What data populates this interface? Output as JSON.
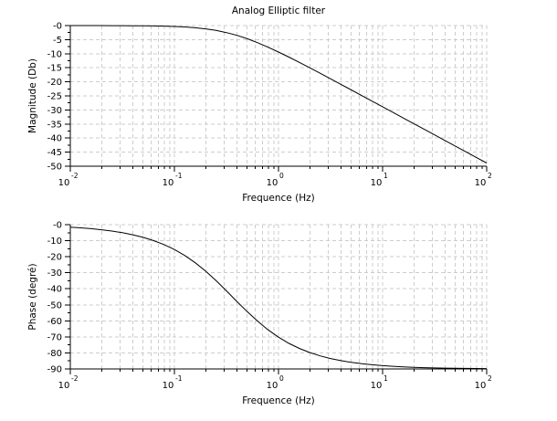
{
  "figure": {
    "title": "Analog Elliptic filter",
    "background": "#ffffff",
    "curve_color": "#000000",
    "axis_color": "#000000",
    "grid_color": "#cdcdcd"
  },
  "chart_data": [
    {
      "type": "line",
      "title": "Analog Elliptic filter",
      "xlabel": "Frequence (Hz)",
      "ylabel": "Magnitude (Db)",
      "x_scale": "log",
      "xlim": [
        0.01,
        100
      ],
      "xlim_exp": [
        -2,
        2
      ],
      "ylim": [
        -50,
        0
      ],
      "y_major_step": 5,
      "y_minor_step": 2.5,
      "grid": true,
      "legend": "none",
      "x_tick_base": "10",
      "x_tick_exponents": [
        "-2",
        "-1",
        "0",
        "1",
        "2"
      ],
      "y_tick_labels": [
        "-0",
        "-5",
        "-10",
        "-15",
        "-20",
        "-25",
        "-30",
        "-35",
        "-40",
        "-45",
        "-50"
      ],
      "series": [
        {
          "name": "magnitude_db",
          "x_exp": [
            -2,
            -1.9,
            -1.8,
            -1.7,
            -1.6,
            -1.5,
            -1.4,
            -1.3,
            -1.2,
            -1.1,
            -1,
            -0.9,
            -0.8,
            -0.7,
            -0.6,
            -0.5,
            -0.4,
            -0.3,
            -0.2,
            -0.1,
            0,
            0.1,
            0.2,
            0.3,
            0.4,
            0.5,
            0.6,
            0.7,
            0.8,
            0.9,
            1,
            1.1,
            1.2,
            1.3,
            1.4,
            1.5,
            1.6,
            1.7,
            1.8,
            1.9,
            2
          ],
          "y": [
            -0.003,
            -0.005,
            -0.008,
            -0.013,
            -0.021,
            -0.033,
            -0.053,
            -0.083,
            -0.131,
            -0.206,
            -0.323,
            -0.501,
            -0.77,
            -1.163,
            -1.724,
            -2.485,
            -3.469,
            -4.68,
            -6.098,
            -7.685,
            -9.403,
            -11.215,
            -13.092,
            -15.013,
            -16.963,
            -18.93,
            -20.909,
            -22.896,
            -24.888,
            -26.883,
            -28.879,
            -30.877,
            -32.876,
            -34.875,
            -36.875,
            -38.874,
            -40.874,
            -42.874,
            -44.874,
            -46.874,
            -48.874
          ]
        }
      ]
    },
    {
      "type": "line",
      "title": "",
      "xlabel": "Frequence (Hz)",
      "ylabel": "Phase (degré)",
      "x_scale": "log",
      "xlim": [
        0.01,
        100
      ],
      "xlim_exp": [
        -2,
        2
      ],
      "ylim": [
        -90,
        0
      ],
      "y_major_step": 10,
      "y_minor_step": 5,
      "grid": true,
      "legend": "none",
      "x_tick_base": "10",
      "x_tick_exponents": [
        "-2",
        "-1",
        "0",
        "1",
        "2"
      ],
      "y_tick_labels": [
        "-0",
        "-10",
        "-20",
        "-30",
        "-40",
        "-50",
        "-60",
        "-70",
        "-80",
        "-90"
      ],
      "series": [
        {
          "name": "phase_deg",
          "x_exp": [
            -2,
            -1.9,
            -1.8,
            -1.7,
            -1.6,
            -1.5,
            -1.4,
            -1.3,
            -1.2,
            -1.1,
            -1,
            -0.9,
            -0.8,
            -0.7,
            -0.6,
            -0.5,
            -0.4,
            -0.3,
            -0.2,
            -0.1,
            0,
            0.1,
            0.2,
            0.3,
            0.4,
            0.5,
            0.6,
            0.7,
            0.8,
            0.9,
            1,
            1.1,
            1.2,
            1.3,
            1.4,
            1.5,
            1.6,
            1.7,
            1.8,
            1.9,
            2
          ],
          "y": [
            -1.59,
            -2.0,
            -2.52,
            -3.17,
            -3.99,
            -5.02,
            -6.31,
            -7.93,
            -9.94,
            -12.44,
            -15.52,
            -19.27,
            -23.76,
            -28.99,
            -34.9,
            -41.3,
            -47.88,
            -54.31,
            -60.29,
            -65.62,
            -70.2,
            -74.04,
            -77.2,
            -79.77,
            -81.84,
            -83.51,
            -84.83,
            -85.89,
            -86.73,
            -87.4,
            -87.94,
            -88.36,
            -88.7,
            -88.97,
            -89.18,
            -89.35,
            -89.48,
            -89.59,
            -89.67,
            -89.74,
            -89.79
          ]
        }
      ]
    }
  ]
}
